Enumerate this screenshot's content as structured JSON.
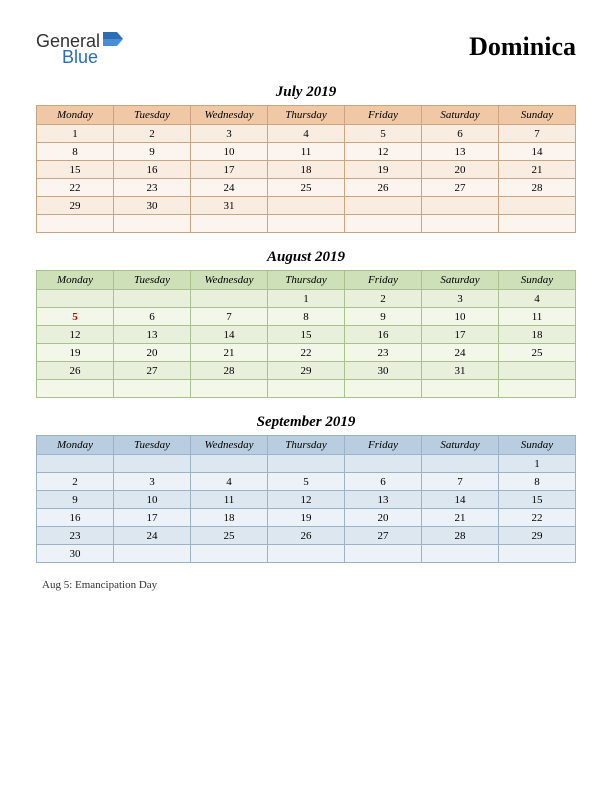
{
  "logo": {
    "general": "General",
    "blue": "Blue",
    "flag_color": "#2a6db5"
  },
  "title": "Dominica",
  "day_headers": [
    "Monday",
    "Tuesday",
    "Wednesday",
    "Thursday",
    "Friday",
    "Saturday",
    "Sunday"
  ],
  "months": [
    {
      "name": "July 2019",
      "header_bg": "#f1c8a5",
      "row_odd_bg": "#f9ece0",
      "row_even_bg": "#fcf5ef",
      "border_color": "#c9a582",
      "weeks": [
        [
          "1",
          "2",
          "3",
          "4",
          "5",
          "6",
          "7"
        ],
        [
          "8",
          "9",
          "10",
          "11",
          "12",
          "13",
          "14"
        ],
        [
          "15",
          "16",
          "17",
          "18",
          "19",
          "20",
          "21"
        ],
        [
          "22",
          "23",
          "24",
          "25",
          "26",
          "27",
          "28"
        ],
        [
          "29",
          "30",
          "31",
          "",
          "",
          "",
          ""
        ],
        [
          "",
          "",
          "",
          "",
          "",
          "",
          ""
        ]
      ],
      "holidays": []
    },
    {
      "name": "August 2019",
      "header_bg": "#cde0b8",
      "row_odd_bg": "#e8f0dc",
      "row_even_bg": "#f2f7ea",
      "border_color": "#a9c18f",
      "weeks": [
        [
          "",
          "",
          "",
          "1",
          "2",
          "3",
          "4"
        ],
        [
          "5",
          "6",
          "7",
          "8",
          "9",
          "10",
          "11"
        ],
        [
          "12",
          "13",
          "14",
          "15",
          "16",
          "17",
          "18"
        ],
        [
          "19",
          "20",
          "21",
          "22",
          "23",
          "24",
          "25"
        ],
        [
          "26",
          "27",
          "28",
          "29",
          "30",
          "31",
          ""
        ],
        [
          "",
          "",
          "",
          "",
          "",
          "",
          ""
        ]
      ],
      "holidays": [
        {
          "week": 1,
          "col": 0
        }
      ]
    },
    {
      "name": "September 2019",
      "header_bg": "#b9cde0",
      "row_odd_bg": "#dde7f0",
      "row_even_bg": "#ecf2f7",
      "border_color": "#9bb2c9",
      "weeks": [
        [
          "",
          "",
          "",
          "",
          "",
          "",
          "1"
        ],
        [
          "2",
          "3",
          "4",
          "5",
          "6",
          "7",
          "8"
        ],
        [
          "9",
          "10",
          "11",
          "12",
          "13",
          "14",
          "15"
        ],
        [
          "16",
          "17",
          "18",
          "19",
          "20",
          "21",
          "22"
        ],
        [
          "23",
          "24",
          "25",
          "26",
          "27",
          "28",
          "29"
        ],
        [
          "30",
          "",
          "",
          "",
          "",
          "",
          ""
        ]
      ],
      "holidays": []
    }
  ],
  "footnote": "Aug 5: Emancipation Day"
}
